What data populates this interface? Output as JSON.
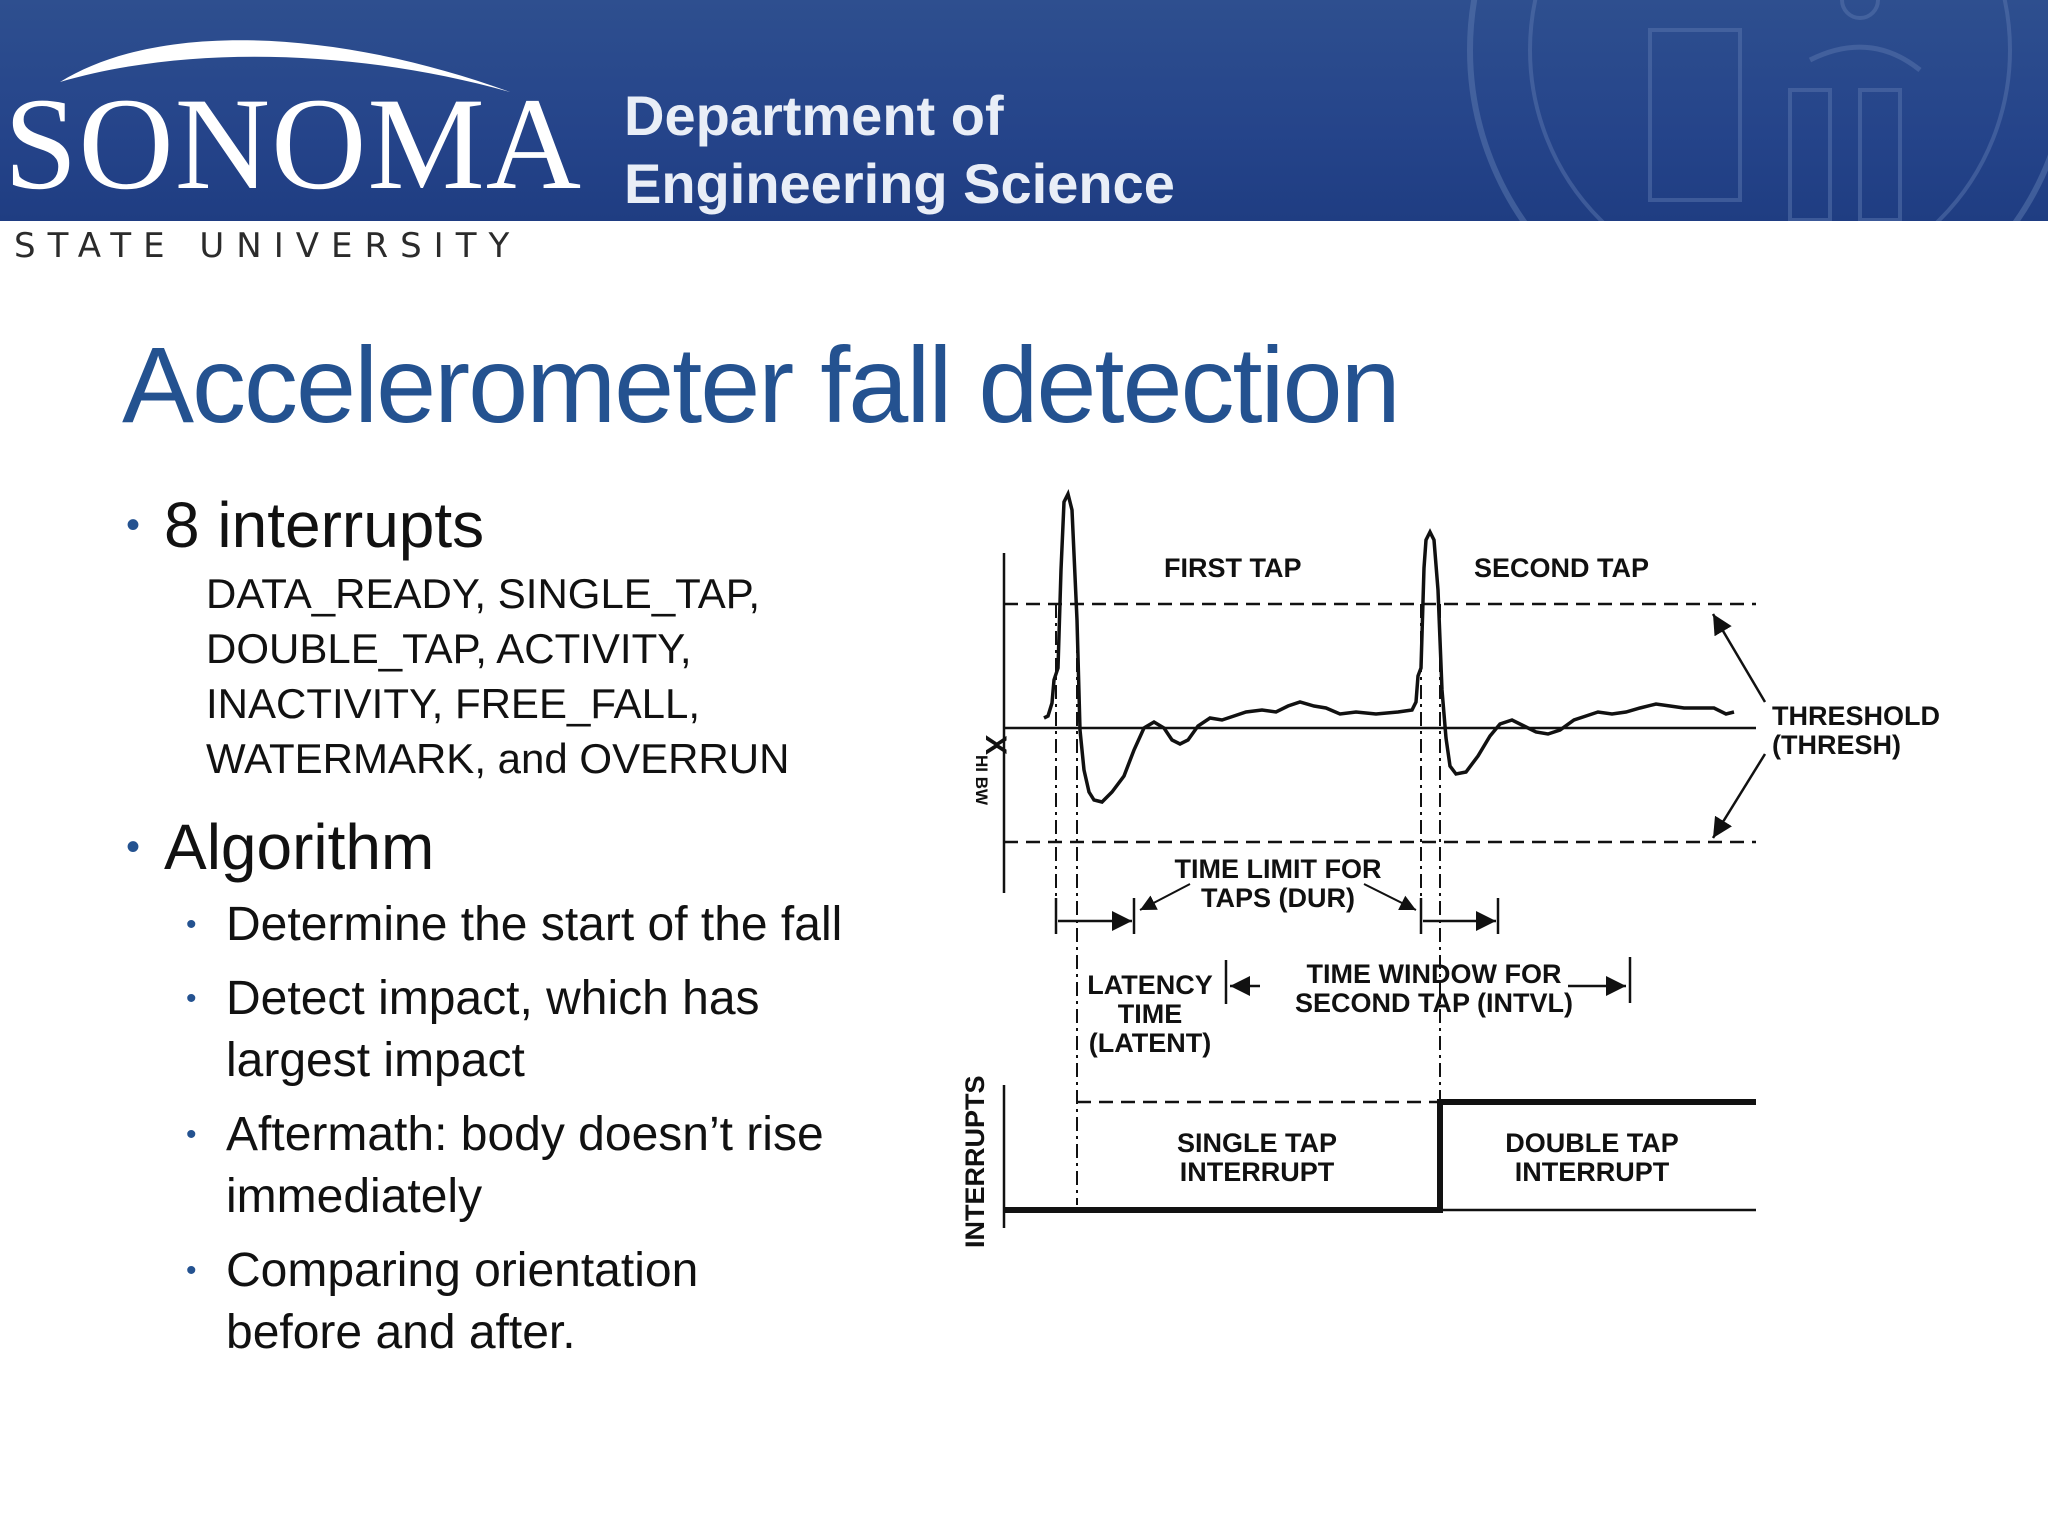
{
  "header": {
    "logo_name": "SONOMA",
    "logo_sub": "STATE UNIVERSITY",
    "department_line1": "Department of",
    "department_line2": "Engineering Science",
    "seal_icon": "university-seal-icon",
    "background_color": "#25448a"
  },
  "slide": {
    "title": "Accelerometer fall detection",
    "bullets": [
      {
        "text": "8 interrupts",
        "detail_lines": [
          "DATA_READY, SINGLE_TAP,",
          "DOUBLE_TAP, ACTIVITY,",
          "INACTIVITY, FREE_FALL,",
          "WATERMARK, and OVERRUN"
        ]
      },
      {
        "text": "Algorithm",
        "subbullets": [
          {
            "lines": [
              "Determine the start of the fall"
            ]
          },
          {
            "lines": [
              "Detect impact, which has",
              "largest impact"
            ]
          },
          {
            "lines": [
              "Aftermath: body doesn’t rise",
              "immediately"
            ]
          },
          {
            "lines": [
              "Comparing orientation",
              "before and after."
            ]
          }
        ]
      }
    ]
  },
  "diagram": {
    "first_tap": "FIRST TAP",
    "second_tap": "SECOND TAP",
    "threshold_line1": "THRESHOLD",
    "threshold_line2": "(THRESH)",
    "y_axis_label": "X",
    "y_axis_subscript": "HI BW",
    "dur_line1": "TIME LIMIT FOR",
    "dur_line2": "TAPS (DUR)",
    "latency_line1": "LATENCY",
    "latency_line2": "TIME",
    "latency_line3": "(LATENT)",
    "window_line1": "TIME WINDOW FOR",
    "window_line2": "SECOND TAP (INTVL)",
    "interrupts_label": "INTERRUPTS",
    "single_line1": "SINGLE TAP",
    "single_line2": "INTERRUPT",
    "double_line1": "DOUBLE TAP",
    "double_line2": "INTERRUPT"
  }
}
